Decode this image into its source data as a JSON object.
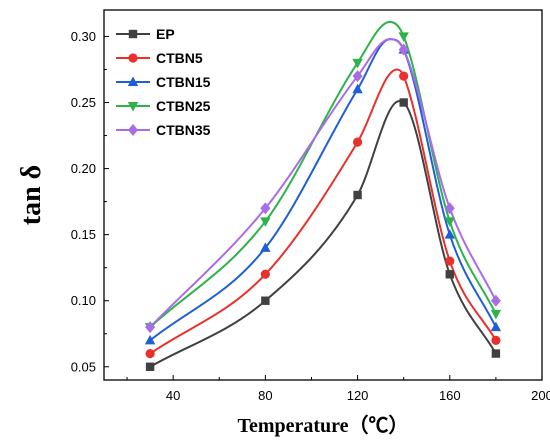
{
  "chart_data": {
    "type": "line",
    "xlabel": "Temperature（℃）",
    "ylabel": "tan δ",
    "x_ticks": [
      "40",
      "80",
      "120",
      "160",
      "200"
    ],
    "y_ticks": [
      "0.05",
      "0.10",
      "0.15",
      "0.20",
      "0.25",
      "0.30"
    ],
    "xlim": [
      10,
      200
    ],
    "ylim": [
      0.04,
      0.32
    ],
    "grid": false,
    "legend_position": "top-left",
    "x": [
      30,
      80,
      120,
      140,
      160,
      180
    ],
    "series": [
      {
        "name": "EP",
        "marker": "square",
        "color": "#404040",
        "values": [
          0.05,
          0.1,
          0.18,
          0.25,
          0.12,
          0.06
        ],
        "peak": [
          138,
          0.251
        ]
      },
      {
        "name": "CTBN5",
        "marker": "circle",
        "color": "#e8312d",
        "values": [
          0.06,
          0.12,
          0.22,
          0.27,
          0.13,
          0.07
        ],
        "peak": [
          137,
          0.275
        ]
      },
      {
        "name": "CTBN15",
        "marker": "triangle-up",
        "color": "#1f5fd6",
        "values": [
          0.07,
          0.14,
          0.26,
          0.29,
          0.15,
          0.08
        ],
        "peak": [
          134,
          0.298
        ]
      },
      {
        "name": "CTBN25",
        "marker": "triangle-down",
        "color": "#2db34a",
        "values": [
          0.08,
          0.16,
          0.28,
          0.3,
          0.16,
          0.09
        ],
        "peak": [
          134,
          0.311
        ]
      },
      {
        "name": "CTBN35",
        "marker": "diamond",
        "color": "#a96ce6",
        "values": [
          0.08,
          0.17,
          0.27,
          0.29,
          0.17,
          0.1
        ],
        "peak": [
          134,
          0.298
        ]
      }
    ]
  }
}
